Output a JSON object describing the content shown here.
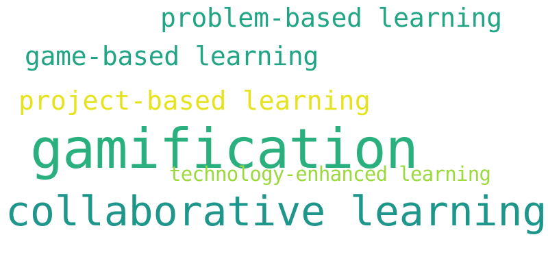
{
  "word_cloud": {
    "background": "#ffffff",
    "words": [
      {
        "text": "problem-based learning",
        "color": "#21a585"
      },
      {
        "text": "game-based learning",
        "color": "#21a585"
      },
      {
        "text": "project-based learning",
        "color": "#e6e31d"
      },
      {
        "text": "gamification",
        "color": "#2ab07f"
      },
      {
        "text": "technology-enhanced learning",
        "color": "#9bd93c"
      },
      {
        "text": "collaborative learning",
        "color": "#1f968b"
      }
    ]
  }
}
